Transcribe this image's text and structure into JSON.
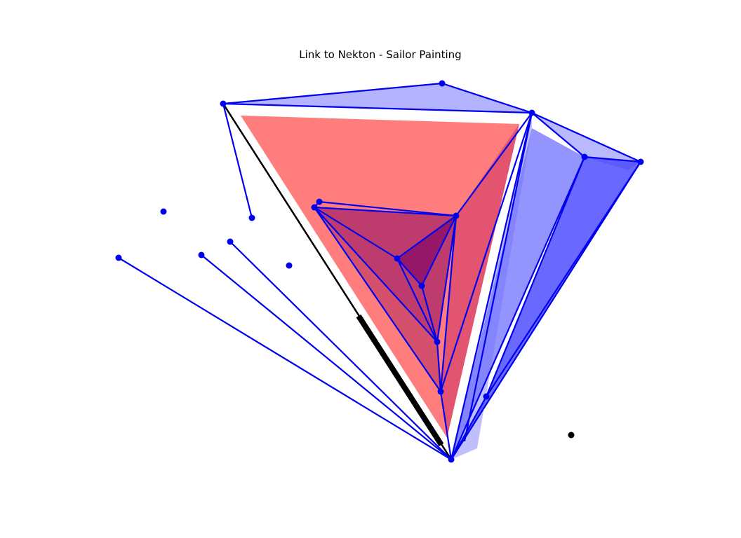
{
  "title": "Link to Nekton - Sailor Painting",
  "colors": {
    "red_fill": "#ff6666",
    "blue_fill": "#6b6bff",
    "dark_blue_fill": "#3333ff",
    "purple_fill": "#8b0060",
    "line_blue": "#0000ee",
    "node_blue": "#0000ee",
    "line_black": "#000000",
    "background": "#ffffff"
  }
}
